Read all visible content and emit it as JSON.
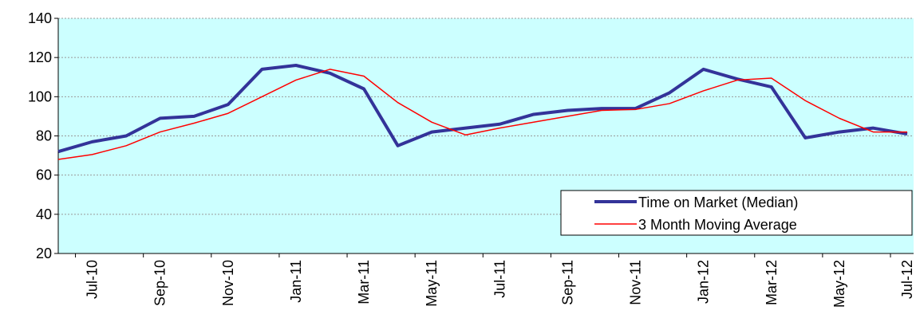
{
  "chart_data": {
    "type": "line",
    "categories": [
      null,
      "Jul-10",
      null,
      "Sep-10",
      null,
      "Nov-10",
      null,
      "Jan-11",
      null,
      "Mar-11",
      null,
      "May-11",
      null,
      "Jul-11",
      null,
      "Sep-11",
      null,
      "Nov-11",
      null,
      "Jan-12",
      null,
      "Mar-12",
      null,
      "May-12",
      null,
      "Jul-12"
    ],
    "series": [
      {
        "name": "Time on Market (Median)",
        "color": "#333399",
        "width": 4,
        "values": [
          72,
          77,
          80,
          89,
          90,
          96,
          114,
          116,
          112,
          104,
          75,
          82,
          84,
          86,
          91,
          93,
          94,
          94,
          102,
          114,
          109,
          105,
          79,
          82,
          84,
          81
        ]
      },
      {
        "name": "3 Month Moving Average",
        "color": "#ff0000",
        "width": 1.5,
        "values": [
          68,
          70.5,
          75,
          82,
          86.5,
          91.5,
          100,
          108.5,
          114,
          110.5,
          97,
          87,
          80.5,
          84,
          87,
          90,
          93,
          93.5,
          96.5,
          103,
          108.5,
          109.5,
          98,
          89,
          82,
          82
        ]
      }
    ],
    "ylim": [
      20,
      140
    ],
    "yticks": [
      20,
      40,
      60,
      80,
      100,
      120,
      140
    ],
    "grid": true,
    "legend": "lower-right"
  }
}
